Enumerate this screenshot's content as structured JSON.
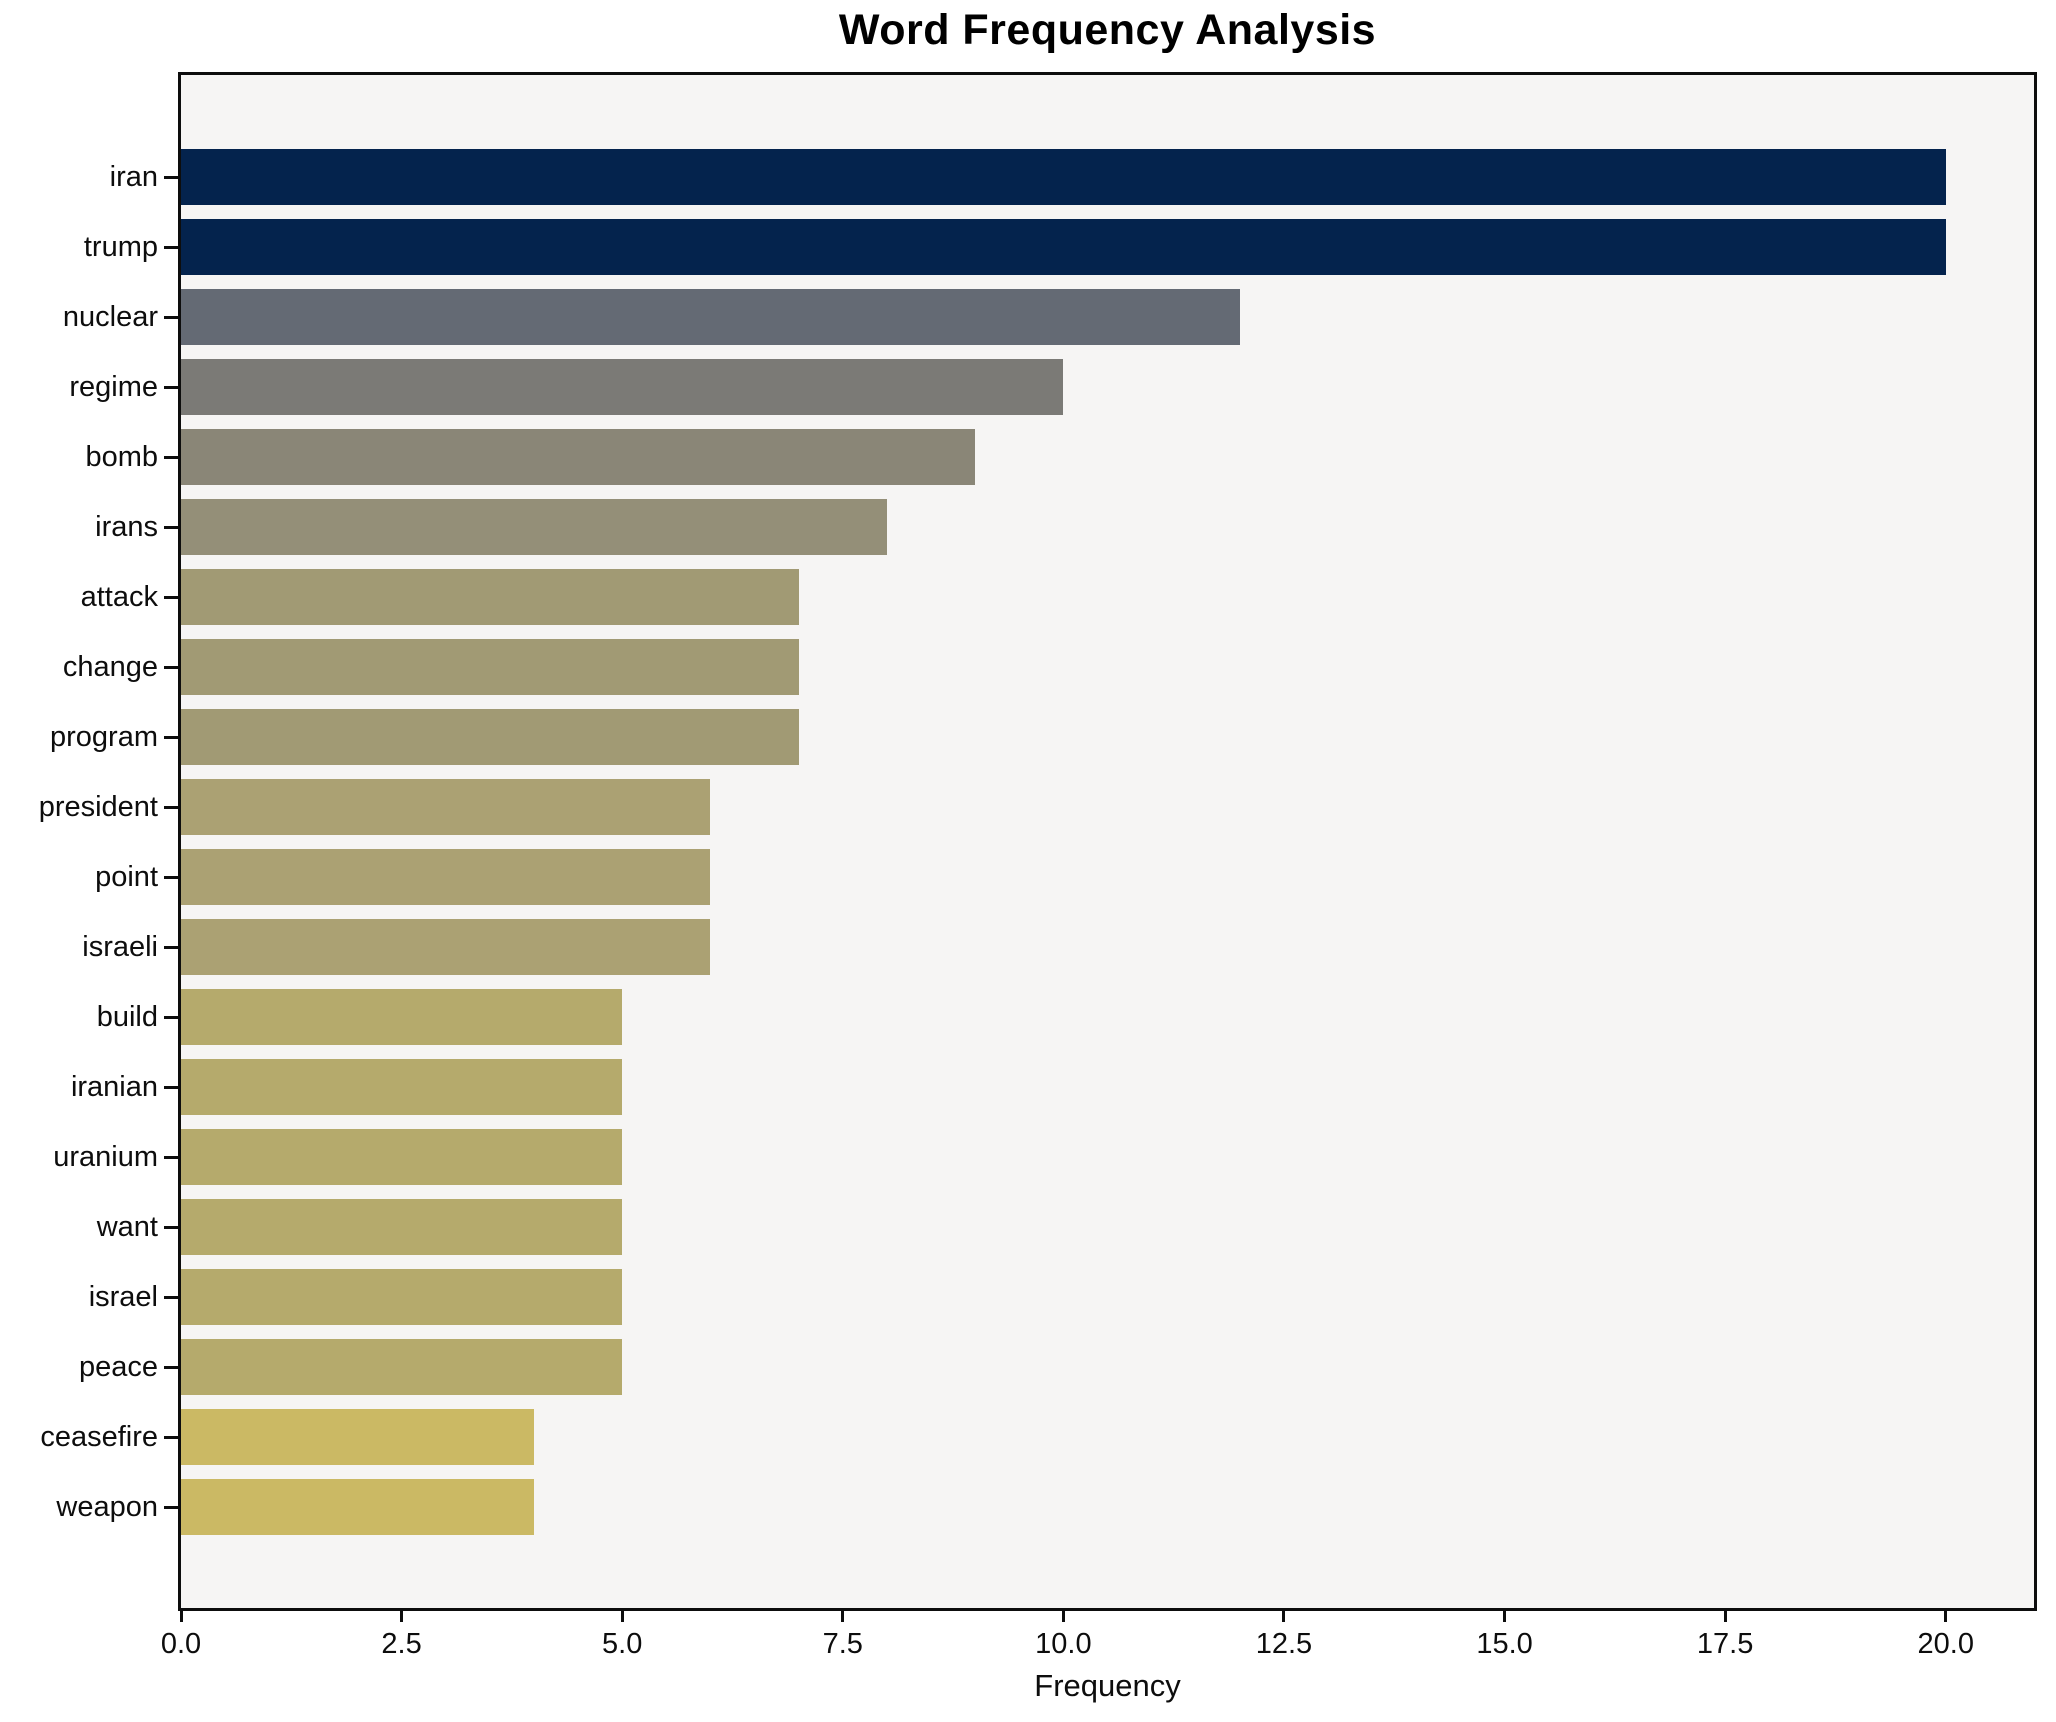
{
  "chart_data": {
    "type": "bar",
    "orientation": "horizontal",
    "title": "Word Frequency Analysis",
    "xlabel": "Frequency",
    "ylabel": "",
    "categories": [
      "iran",
      "trump",
      "nuclear",
      "regime",
      "bomb",
      "irans",
      "attack",
      "change",
      "program",
      "president",
      "point",
      "israeli",
      "build",
      "iranian",
      "uranium",
      "want",
      "israel",
      "peace",
      "ceasefire",
      "weapon"
    ],
    "values": [
      20,
      20,
      12,
      10,
      9,
      8,
      7,
      7,
      7,
      6,
      6,
      6,
      5,
      5,
      5,
      5,
      5,
      5,
      4,
      4
    ],
    "bar_colors": [
      "#04234d",
      "#04234d",
      "#646a74",
      "#7b7a76",
      "#8a8677",
      "#948f78",
      "#a19a74",
      "#a19a74",
      "#a19a74",
      "#aba173",
      "#aba173",
      "#aba173",
      "#b5aa6c",
      "#b5aa6c",
      "#b5aa6c",
      "#b5aa6c",
      "#b5aa6c",
      "#b5aa6c",
      "#cbb964",
      "#cbb964"
    ],
    "xlim": [
      0,
      21
    ],
    "xticks": [
      0,
      2.5,
      5,
      7.5,
      10,
      12.5,
      15,
      17.5,
      20
    ],
    "xtick_labels": [
      "0.0",
      "2.5",
      "5.0",
      "7.5",
      "10.0",
      "12.5",
      "15.0",
      "17.5",
      "20.0"
    ],
    "grid": false,
    "legend_position": "none",
    "plot_bg_color": "#f6f5f4",
    "figure_bg_color": "#ffffff",
    "spine_color": "#0d0d0d",
    "colormap": "cividis"
  }
}
